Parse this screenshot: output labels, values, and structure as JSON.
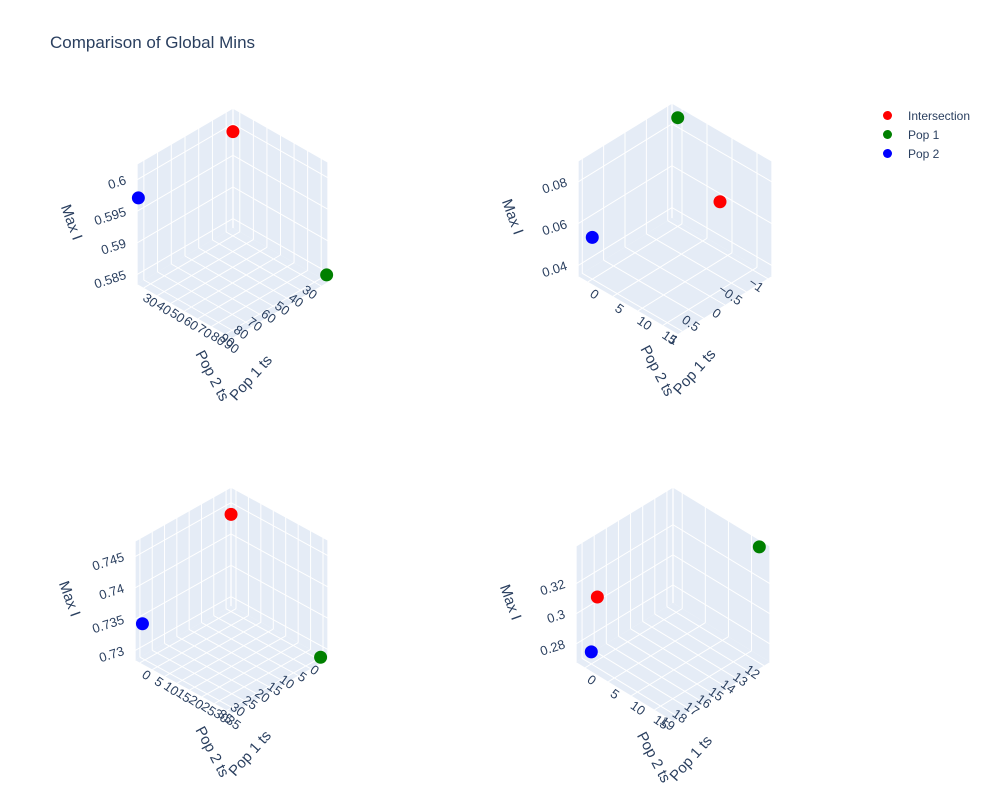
{
  "title": "Comparison of Global Mins",
  "legend": {
    "items": [
      {
        "label": "Intersection",
        "color": "#ff0000"
      },
      {
        "label": "Pop 1",
        "color": "#008000"
      },
      {
        "label": "Pop 2",
        "color": "#0000ff"
      }
    ],
    "placement": "top-right"
  },
  "chart_data": [
    {
      "type": "scatter3d",
      "xlabel": "Pop 1 ts",
      "ylabel": "Pop 2 ts",
      "zlabel": "Max I",
      "x_ticks": [
        "30",
        "40",
        "50",
        "60",
        "70",
        "80",
        "90"
      ],
      "y_ticks": [
        "30",
        "40",
        "50",
        "60",
        "70",
        "80",
        "90"
      ],
      "z_ticks": [
        "0.585",
        "0.59",
        "0.595",
        "0.6"
      ],
      "xlim": [
        25,
        95
      ],
      "ylim": [
        25,
        95
      ],
      "zlim": [
        0.5835,
        0.6025
      ],
      "series": [
        {
          "name": "Intersection",
          "points": [
            {
              "x": 30,
              "y": 30,
              "z": 0.6
            }
          ]
        },
        {
          "name": "Pop 1",
          "points": [
            {
              "x": 94,
              "y": 25,
              "z": 0.5845
            }
          ]
        },
        {
          "name": "Pop 2",
          "points": [
            {
              "x": 25,
              "y": 94,
              "z": 0.597
            }
          ]
        }
      ]
    },
    {
      "type": "scatter3d",
      "xlabel": "Pop 1 ts",
      "ylabel": "Pop 2 ts",
      "zlabel": "Max I",
      "x_ticks": [
        "0",
        "5",
        "10",
        "15"
      ],
      "y_ticks": [
        "−1",
        "−0.5",
        "0",
        "0.5",
        "1"
      ],
      "z_ticks": [
        "0.04",
        "0.06",
        "0.08"
      ],
      "xlim": [
        -2,
        18
      ],
      "ylim": [
        -1.1,
        1.1
      ],
      "zlim": [
        0.035,
        0.09
      ],
      "series": [
        {
          "name": "Intersection",
          "points": [
            {
              "x": 17,
              "y": 0,
              "z": 0.083
            }
          ]
        },
        {
          "name": "Pop 1",
          "points": [
            {
              "x": 0,
              "y": -1,
              "z": 0.087
            }
          ]
        },
        {
          "name": "Pop 2",
          "points": [
            {
              "x": 0,
              "y": 1,
              "z": 0.055
            }
          ]
        }
      ]
    },
    {
      "type": "scatter3d",
      "xlabel": "Pop 1 ts",
      "ylabel": "Pop 2 ts",
      "zlabel": "Max I",
      "x_ticks": [
        "0",
        "5",
        "10",
        "15",
        "20",
        "25",
        "30",
        "35"
      ],
      "y_ticks": [
        "0",
        "5",
        "10",
        "15",
        "20",
        "25",
        "30",
        "35"
      ],
      "z_ticks": [
        "0.73",
        "0.735",
        "0.74",
        "0.745"
      ],
      "xlim": [
        -2,
        37
      ],
      "ylim": [
        -2,
        37
      ],
      "zlim": [
        0.7285,
        0.7475
      ],
      "series": [
        {
          "name": "Intersection",
          "points": [
            {
              "x": 0,
              "y": 0,
              "z": 0.744
            }
          ]
        },
        {
          "name": "Pop 1",
          "points": [
            {
              "x": 36,
              "y": 0,
              "z": 0.729
            }
          ]
        },
        {
          "name": "Pop 2",
          "points": [
            {
              "x": 0,
              "y": 36,
              "z": 0.7345
            }
          ]
        }
      ]
    },
    {
      "type": "scatter3d",
      "xlabel": "Pop 1 ts",
      "ylabel": "Pop 2 ts",
      "zlabel": "Max I",
      "x_ticks": [
        "0",
        "5",
        "10",
        "15"
      ],
      "y_ticks": [
        "12",
        "13",
        "14",
        "15",
        "16",
        "17",
        "18",
        "19"
      ],
      "z_ticks": [
        "0.28",
        "0.3",
        "0.32"
      ],
      "xlim": [
        -2,
        19
      ],
      "ylim": [
        11.5,
        19.5
      ],
      "zlim": [
        0.268,
        0.345
      ],
      "series": [
        {
          "name": "Intersection",
          "points": [
            {
              "x": 0,
              "y": 18.5,
              "z": 0.31
            }
          ]
        },
        {
          "name": "Pop 1",
          "points": [
            {
              "x": 18,
              "y": 12,
              "z": 0.345
            }
          ]
        },
        {
          "name": "Pop 2",
          "points": [
            {
              "x": 0,
              "y": 19,
              "z": 0.276
            }
          ]
        }
      ]
    }
  ]
}
